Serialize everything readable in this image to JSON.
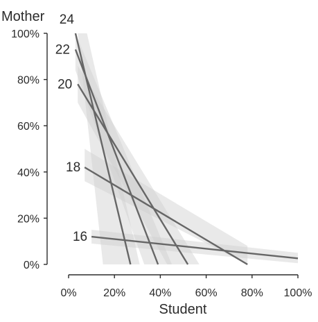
{
  "chart_data": {
    "type": "line",
    "title": "",
    "xlabel": "Student",
    "ylabel": "Mother",
    "xlim": [
      0,
      100
    ],
    "ylim": [
      0,
      100
    ],
    "x_ticks": [
      0,
      20,
      40,
      60,
      80,
      100
    ],
    "y_ticks": [
      0,
      20,
      40,
      60,
      80,
      100
    ],
    "x_tick_labels": [
      "0%",
      "20%",
      "40%",
      "60%",
      "80%",
      "100%"
    ],
    "y_tick_labels": [
      "0%",
      "20%",
      "40%",
      "60%",
      "80%",
      "100%"
    ],
    "grid": false,
    "legend": "none",
    "line_color": "#666666",
    "band_color": "#cfcfcf",
    "series": [
      {
        "name": "16",
        "x": [
          10,
          100
        ],
        "y": [
          12,
          2.6
        ],
        "band": [
          [
            10,
            15
          ],
          [
            100,
            5
          ],
          [
            100,
            0.5
          ],
          [
            10,
            9
          ]
        ]
      },
      {
        "name": "18",
        "x": [
          7,
          78
        ],
        "y": [
          42,
          0
        ],
        "band": [
          [
            7,
            50
          ],
          [
            78,
            8
          ],
          [
            78,
            0
          ],
          [
            7,
            36
          ]
        ]
      },
      {
        "name": "20",
        "x": [
          4,
          52
        ],
        "y": [
          78,
          0
        ],
        "band": [
          [
            4,
            86
          ],
          [
            57,
            0
          ],
          [
            43,
            0
          ],
          [
            4,
            70
          ]
        ]
      },
      {
        "name": "22",
        "x": [
          3,
          39
        ],
        "y": [
          93,
          0
        ],
        "band": [
          [
            3,
            100
          ],
          [
            45,
            0
          ],
          [
            33,
            0
          ],
          [
            3,
            84
          ]
        ]
      },
      {
        "name": "24",
        "x": [
          3,
          27
        ],
        "y": [
          100,
          0
        ],
        "band": [
          [
            4,
            100
          ],
          [
            8,
            100
          ],
          [
            31,
            0
          ],
          [
            15,
            0
          ]
        ]
      }
    ]
  }
}
